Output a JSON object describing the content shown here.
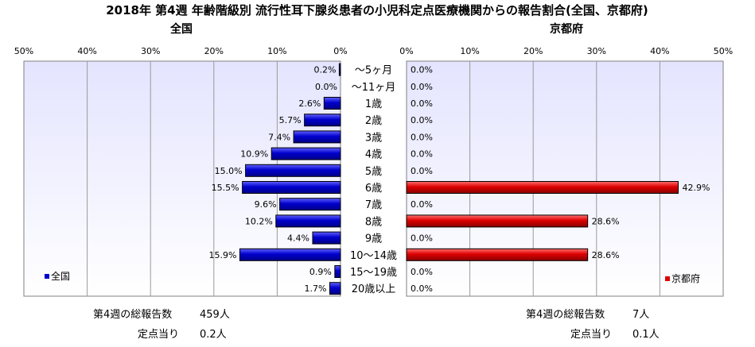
{
  "chart_data": {
    "type": "bar",
    "title": "2018年 第4週 年齢階級別 流行性耳下腺炎患者の小児科定点医療機関からの報告割合(全国、京都府)",
    "xlim": [
      0,
      50
    ],
    "x_ticks": [
      "50%",
      "40%",
      "30%",
      "20%",
      "10%",
      "0%"
    ],
    "x_ticks_right": [
      "0%",
      "10%",
      "20%",
      "30%",
      "40%",
      "50%"
    ],
    "categories": [
      "～5ヶ月",
      "～11ヶ月",
      "1歳",
      "2歳",
      "3歳",
      "4歳",
      "5歳",
      "6歳",
      "7歳",
      "8歳",
      "9歳",
      "10～14歳",
      "15～19歳",
      "20歳以上"
    ],
    "series": [
      {
        "name": "全国",
        "panel_title": "全国",
        "color": "#0000cc",
        "values": [
          0.2,
          0.0,
          2.6,
          5.7,
          7.4,
          10.9,
          15.0,
          15.5,
          9.6,
          10.2,
          4.4,
          15.9,
          0.9,
          1.7
        ],
        "labels": [
          "0.2%",
          "0.0%",
          "2.6%",
          "5.7%",
          "7.4%",
          "10.9%",
          "15.0%",
          "15.5%",
          "9.6%",
          "10.2%",
          "4.4%",
          "15.9%",
          "0.9%",
          "1.7%"
        ]
      },
      {
        "name": "京都府",
        "panel_title": "京都府",
        "color": "#dd0000",
        "values": [
          0.0,
          0.0,
          0.0,
          0.0,
          0.0,
          0.0,
          0.0,
          42.9,
          0.0,
          28.6,
          0.0,
          28.6,
          0.0,
          0.0
        ],
        "labels": [
          "0.0%",
          "0.0%",
          "0.0%",
          "0.0%",
          "0.0%",
          "0.0%",
          "0.0%",
          "42.9%",
          "0.0%",
          "28.6%",
          "0.0%",
          "28.6%",
          "0.0%",
          "0.0%"
        ]
      }
    ],
    "grid": true,
    "legend": [
      "bottom-left",
      "bottom-right"
    ]
  },
  "footer": {
    "national": {
      "total_label": "第4週の総報告数",
      "total_value": "459人",
      "per_label": "定点当り",
      "per_value": "0.2人"
    },
    "kyoto": {
      "total_label": "第4週の総報告数",
      "total_value": "7人",
      "per_label": "定点当り",
      "per_value": "0.1人"
    }
  },
  "colors": {
    "plot_bg_top": "#e4e4ff",
    "plot_bg_bottom": "#ffffff"
  }
}
